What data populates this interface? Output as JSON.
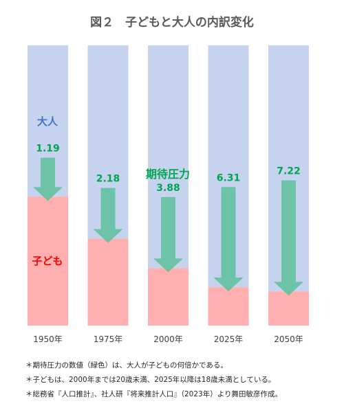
{
  "chart_data": {
    "type": "bar",
    "title": "図２　子どもと大人の内訳変化",
    "categories": [
      "1950年",
      "1975年",
      "2000年",
      "2025年",
      "2050年"
    ],
    "stack_order": [
      "子ども",
      "大人"
    ],
    "series": [
      {
        "name": "子ども",
        "values": [
          0.46,
          0.31,
          0.205,
          0.137,
          0.122
        ],
        "color": "#ffafaf"
      },
      {
        "name": "大人",
        "values": [
          0.54,
          0.69,
          0.795,
          0.863,
          0.878
        ],
        "color": "#c6d3ef"
      }
    ],
    "pressure_values": [
      "1.19",
      "2.18",
      "3.88",
      "6.31",
      "7.22"
    ],
    "pressure_label": "期待圧力",
    "arrow_color": "#5cbf9a",
    "ylim": [
      0,
      1
    ]
  },
  "notes": [
    "＊期待圧力の数値（緑色）は、大人が子どもの何倍かである。",
    "＊子どもは、2000年までは20歳未満、2025年以降は18歳未満としている。",
    "＊総務省『人口推計』、社人研『将来推計人口』（2023年）より舞田敏彦作成。"
  ]
}
